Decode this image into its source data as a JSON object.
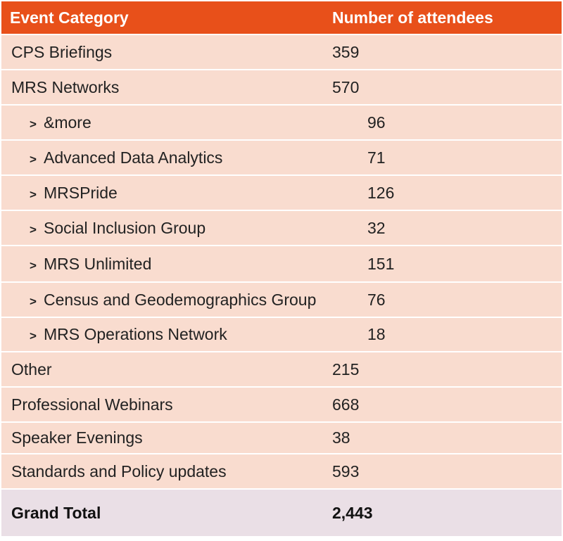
{
  "table": {
    "headers": {
      "category": "Event Category",
      "attendees": "Number of attendees"
    },
    "arrow_glyph": ">",
    "rows": [
      {
        "category": "CPS Briefings",
        "attendees": "359"
      },
      {
        "category": "MRS Networks",
        "attendees": "570"
      },
      {
        "category": "&more",
        "attendees": "96"
      },
      {
        "category": "Advanced Data Analytics",
        "attendees": "71"
      },
      {
        "category": "MRSPride",
        "attendees": "126"
      },
      {
        "category": "Social Inclusion Group",
        "attendees": "32"
      },
      {
        "category": "MRS Unlimited",
        "attendees": "151"
      },
      {
        "category": "Census and Geodemographics Group",
        "attendees": "76"
      },
      {
        "category": "MRS Operations Network",
        "attendees": "18"
      },
      {
        "category": "Other",
        "attendees": "215"
      },
      {
        "category": "Professional Webinars",
        "attendees": "668"
      },
      {
        "category": "Speaker Evenings",
        "attendees": "38"
      },
      {
        "category": "Standards and Policy updates",
        "attendees": "593"
      }
    ],
    "total": {
      "label": "Grand Total",
      "value": "2,443"
    }
  },
  "colors": {
    "header_bg": "#e8501a",
    "row_bg": "#f9dccf",
    "total_bg": "#eadfe6"
  }
}
